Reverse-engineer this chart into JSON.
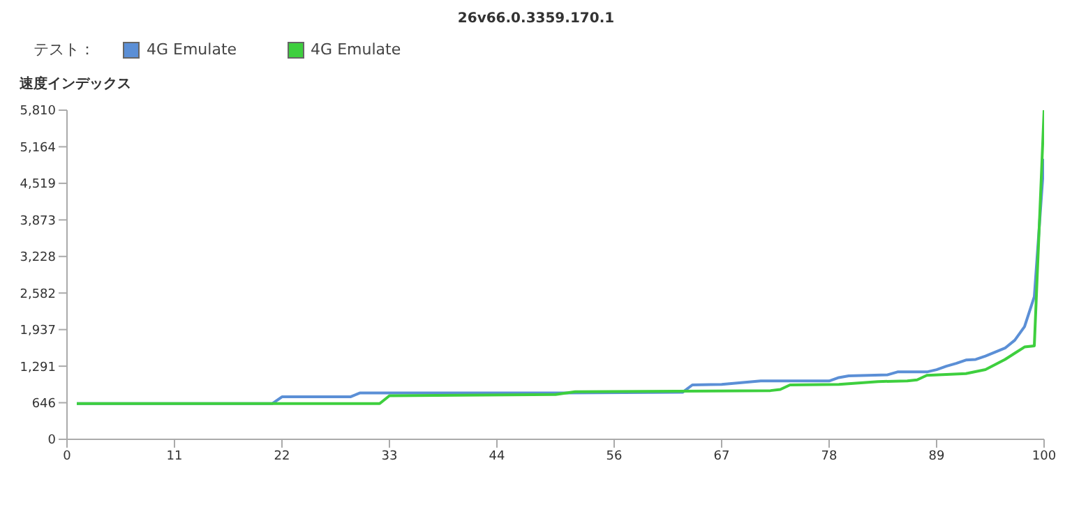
{
  "chart_data": {
    "type": "line",
    "title": "26v66.0.3359.170.1",
    "legend_title": "テスト：",
    "ylabel": "速度インデックス",
    "xlim": [
      0,
      100
    ],
    "xticks": [
      0,
      11,
      22,
      33,
      44,
      56,
      67,
      78,
      89,
      100
    ],
    "ylim": [
      0,
      5810
    ],
    "yticks": [
      0,
      646,
      {
        "value": 1291,
        "label": "1,291"
      },
      {
        "value": 1937,
        "label": "1,937"
      },
      {
        "value": 2582,
        "label": "2,582"
      },
      {
        "value": 3228,
        "label": "3,228"
      },
      {
        "value": 3873,
        "label": "3,873"
      },
      {
        "value": 4519,
        "label": "4,519"
      },
      {
        "value": 5164,
        "label": "5,164"
      },
      {
        "value": 5810,
        "label": "5,810"
      }
    ],
    "grid": false,
    "legend": "top left",
    "marker": "none",
    "line_style": "solid",
    "series": [
      {
        "name": "4G Emulate",
        "color": "#5b8fd6",
        "x": [
          1,
          21,
          22,
          29,
          30,
          51,
          63,
          64,
          67,
          69,
          71,
          78,
          79,
          80,
          84,
          85,
          88,
          89,
          90,
          91,
          92,
          93,
          94,
          95,
          96,
          97,
          98,
          99,
          100
        ],
        "values": [
          630,
          630,
          750,
          750,
          820,
          820,
          830,
          960,
          970,
          1000,
          1030,
          1030,
          1090,
          1120,
          1140,
          1190,
          1190,
          1230,
          1290,
          1340,
          1400,
          1410,
          1470,
          1540,
          1610,
          1750,
          1990,
          2520,
          4950
        ]
      },
      {
        "name": "4G Emulate",
        "color": "#3ecf3e",
        "x": [
          1,
          32,
          33,
          50,
          52,
          72,
          73,
          74,
          79,
          83,
          86,
          87,
          88,
          92,
          94,
          95,
          96,
          97,
          98,
          99,
          100
        ],
        "values": [
          630,
          630,
          770,
          790,
          840,
          860,
          880,
          960,
          970,
          1020,
          1030,
          1050,
          1130,
          1160,
          1230,
          1320,
          1410,
          1520,
          1630,
          1650,
          5810
        ]
      }
    ]
  }
}
